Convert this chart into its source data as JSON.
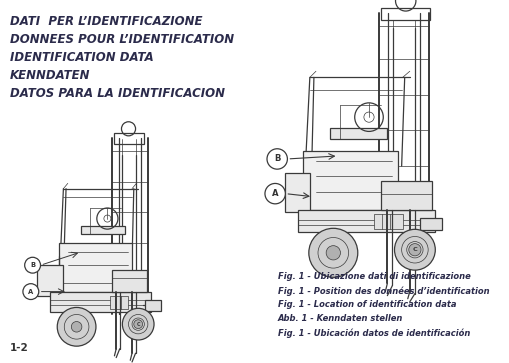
{
  "background_color": "#ffffff",
  "page_number": "1-2",
  "header_lines": [
    "DATI  PER L’IDENTIFICAZIONE",
    "DONNEES POUR L’IDENTIFICATION",
    "IDENTIFICATION DATA",
    "KENNDATEN",
    "DATOS PARA LA IDENTIFICACION"
  ],
  "caption_lines": [
    "Fig. 1 - Ubicazione dati di identificazione",
    "Fig. 1 - Position des données d’identification",
    "Fig. 1 - Location of identification data",
    "Abb. 1 - Kenndaten stellen",
    "Fig. 1 - Ubicación datos de identificación"
  ],
  "header_color": "#2b2b4b",
  "caption_color": "#2b2b4b",
  "line_color": "#3a3a3a",
  "header_fontsize": 8.5,
  "caption_fontsize": 6.0,
  "page_num_fontsize": 7.5
}
